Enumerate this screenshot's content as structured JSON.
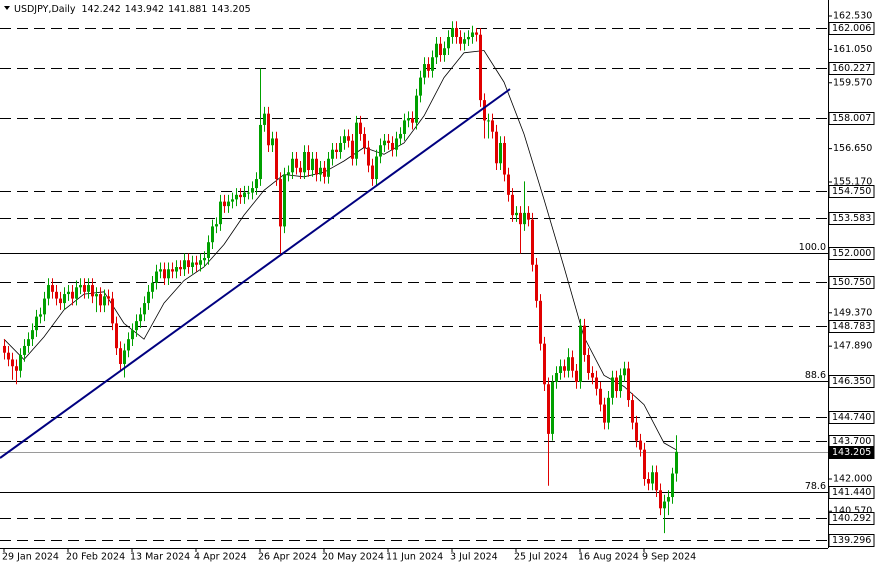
{
  "chart_data": {
    "type": "candlestick",
    "symbol": "USDJPY,Daily",
    "up_color": "#00a000",
    "down_color": "#e00000",
    "ylim": [
      138.94,
      163.24
    ],
    "yticks": [
      {
        "value": 162.53,
        "label": "162.530"
      },
      {
        "value": 161.05,
        "label": "161.050"
      },
      {
        "value": 159.57,
        "label": "159.570"
      },
      {
        "value": 156.65,
        "label": "156.650"
      },
      {
        "value": 155.17,
        "label": "155.170"
      },
      {
        "value": 149.37,
        "label": "149.370"
      },
      {
        "value": 147.89,
        "label": "147.890"
      },
      {
        "value": 142,
        "label": "142.000"
      },
      {
        "value": 140.57,
        "label": "140.570"
      }
    ],
    "levels": [
      {
        "price": 162.006,
        "style": "dashed"
      },
      {
        "price": 160.227,
        "style": "dashed"
      },
      {
        "price": 158.007,
        "style": "dashed"
      },
      {
        "price": {
          "value": 154.75,
          "label": "154.750"
        },
        "style": "dashed"
      },
      {
        "price": 153.583,
        "style": "dashed"
      },
      {
        "price": {
          "value": 152,
          "label": "152.000"
        },
        "style": "solid",
        "fib": "100.0"
      },
      {
        "price": {
          "value": 150.75,
          "label": "150.750"
        },
        "style": "dashed"
      },
      {
        "price": 148.783,
        "style": "dashed"
      },
      {
        "price": {
          "value": 146.35,
          "label": "146.350"
        },
        "style": "solid",
        "fib": "88.6"
      },
      {
        "price": {
          "value": 144.74,
          "label": "144.740"
        },
        "style": "dashed"
      },
      {
        "price": {
          "value": 143.7,
          "label": "143.700"
        },
        "style": "dashed"
      },
      {
        "price": 143.205,
        "style": "current"
      },
      {
        "price": {
          "value": 141.44,
          "label": "141.440"
        },
        "style": "solid",
        "fib": "78.6"
      },
      {
        "price": 140.292,
        "style": "dashed"
      },
      {
        "price": 139.296,
        "style": "dashed"
      }
    ],
    "trendline": {
      "x": [
        -1,
        126.5
      ],
      "values": [
        142.93,
        159.29
      ]
    },
    "ma": {
      "x": [
        0,
        5,
        10,
        15,
        20,
        25,
        30,
        35,
        40,
        45,
        50,
        55,
        60,
        65,
        70,
        75,
        80,
        85,
        90,
        95,
        100,
        105,
        110,
        115,
        120,
        125,
        130,
        135,
        140,
        145,
        150,
        155,
        160,
        165,
        168
      ],
      "values": [
        148.2,
        147.3,
        148.3,
        149.5,
        150.2,
        150.3,
        148.9,
        148.2,
        149.8,
        150.8,
        151.4,
        152.4,
        153.7,
        154.8,
        155.5,
        155.4,
        155.6,
        156.1,
        156.7,
        156.4,
        156.9,
        158.1,
        159.8,
        160.9,
        161.0,
        159.6,
        157.3,
        154.4,
        151.4,
        148.3,
        146.6,
        146.1,
        145.3,
        143.6,
        143.3
      ]
    },
    "categories": [
      "29 Jan 2024",
      null,
      null,
      null,
      null,
      null,
      null,
      null,
      null,
      null,
      null,
      null,
      null,
      null,
      null,
      null,
      "20 Feb 2024",
      null,
      null,
      null,
      null,
      null,
      null,
      null,
      null,
      null,
      null,
      null,
      null,
      null,
      null,
      null,
      "13 Mar 2024",
      null,
      null,
      null,
      null,
      null,
      null,
      null,
      null,
      null,
      null,
      null,
      null,
      null,
      null,
      null,
      "4 Apr 2024",
      null,
      null,
      null,
      null,
      null,
      null,
      null,
      null,
      null,
      null,
      null,
      null,
      null,
      null,
      null,
      "26 Apr 2024",
      null,
      null,
      null,
      null,
      null,
      null,
      null,
      null,
      null,
      null,
      null,
      null,
      null,
      null,
      null,
      "20 May 2024",
      null,
      null,
      null,
      null,
      null,
      null,
      null,
      null,
      null,
      null,
      null,
      null,
      null,
      null,
      null,
      "11 Jun 2024",
      null,
      null,
      null,
      null,
      null,
      null,
      null,
      null,
      null,
      null,
      null,
      null,
      null,
      null,
      null,
      "3 Jul 2024",
      null,
      null,
      null,
      null,
      null,
      null,
      null,
      null,
      null,
      null,
      null,
      null,
      null,
      null,
      null,
      "25 Jul 2024",
      null,
      null,
      null,
      null,
      null,
      null,
      null,
      null,
      null,
      null,
      null,
      null,
      null,
      null,
      null,
      "16 Aug 2024",
      null,
      null,
      null,
      null,
      null,
      null,
      null,
      null,
      null,
      null,
      null,
      null,
      null,
      null,
      null,
      "9 Sep 2024",
      null,
      null,
      null,
      null,
      null,
      null,
      null,
      null
    ],
    "ohlc": [
      [
        147.9,
        148.2,
        147.3,
        147.6
      ],
      [
        147.6,
        147.9,
        147.0,
        147.3
      ],
      [
        147.3,
        147.6,
        146.4,
        147.0
      ],
      [
        147.0,
        147.3,
        146.2,
        146.8
      ],
      [
        146.8,
        147.8,
        146.5,
        147.5
      ],
      [
        147.5,
        148.2,
        147.2,
        147.9
      ],
      [
        147.9,
        148.5,
        147.6,
        148.2
      ],
      [
        148.2,
        148.9,
        147.9,
        148.6
      ],
      [
        148.6,
        149.5,
        148.3,
        149.2
      ],
      [
        149.2,
        149.6,
        148.9,
        149.3
      ],
      [
        149.3,
        150.3,
        149.0,
        150.0
      ],
      [
        150.0,
        150.9,
        149.7,
        150.6
      ],
      [
        150.6,
        150.9,
        150.0,
        150.3
      ],
      [
        150.3,
        150.6,
        149.7,
        150.0
      ],
      [
        150.0,
        150.3,
        149.5,
        149.8
      ],
      [
        149.8,
        150.5,
        149.5,
        150.2
      ],
      [
        150.2,
        150.6,
        149.9,
        150.3
      ],
      [
        150.3,
        150.6,
        149.7,
        150.0
      ],
      [
        150.0,
        150.8,
        149.7,
        150.5
      ],
      [
        150.5,
        150.9,
        150.2,
        150.6
      ],
      [
        150.6,
        150.9,
        150.0,
        150.3
      ],
      [
        150.3,
        150.9,
        150.0,
        150.6
      ],
      [
        150.6,
        150.9,
        149.8,
        150.1
      ],
      [
        150.1,
        150.5,
        149.4,
        150.2
      ],
      [
        150.2,
        150.5,
        149.4,
        149.7
      ],
      [
        149.7,
        150.4,
        149.4,
        150.1
      ],
      [
        150.1,
        150.4,
        149.7,
        150.0
      ],
      [
        150.0,
        150.3,
        148.6,
        148.9
      ],
      [
        148.9,
        149.2,
        147.5,
        147.8
      ],
      [
        147.8,
        148.1,
        146.8,
        147.1
      ],
      [
        147.1,
        148.0,
        146.5,
        147.7
      ],
      [
        147.7,
        148.5,
        147.4,
        148.2
      ],
      [
        148.2,
        148.9,
        147.9,
        148.6
      ],
      [
        148.6,
        149.3,
        148.3,
        149.0
      ],
      [
        149.0,
        149.6,
        148.7,
        149.3
      ],
      [
        149.3,
        150.1,
        149.0,
        149.8
      ],
      [
        149.8,
        150.6,
        149.5,
        150.3
      ],
      [
        150.3,
        151.0,
        150.0,
        150.7
      ],
      [
        150.7,
        151.5,
        150.4,
        151.2
      ],
      [
        151.2,
        151.6,
        150.9,
        151.3
      ],
      [
        151.3,
        151.6,
        150.6,
        150.9
      ],
      [
        150.9,
        151.6,
        150.6,
        151.3
      ],
      [
        151.3,
        151.6,
        150.9,
        151.2
      ],
      [
        151.2,
        151.7,
        150.9,
        151.4
      ],
      [
        151.4,
        151.7,
        151.0,
        151.3
      ],
      [
        151.3,
        152.0,
        151.0,
        151.7
      ],
      [
        151.7,
        152.0,
        151.1,
        151.4
      ],
      [
        151.4,
        151.9,
        151.1,
        151.6
      ],
      [
        151.6,
        151.9,
        151.2,
        151.5
      ],
      [
        151.5,
        152.0,
        151.2,
        151.7
      ],
      [
        151.7,
        152.1,
        151.4,
        151.8
      ],
      [
        151.8,
        152.8,
        151.5,
        152.5
      ],
      [
        152.5,
        153.5,
        152.2,
        153.2
      ],
      [
        153.2,
        153.6,
        152.9,
        153.3
      ],
      [
        153.3,
        154.6,
        153.0,
        154.3
      ],
      [
        154.3,
        154.6,
        153.8,
        154.1
      ],
      [
        154.1,
        154.6,
        153.8,
        154.3
      ],
      [
        154.3,
        154.7,
        154.0,
        154.4
      ],
      [
        154.4,
        154.9,
        154.1,
        154.6
      ],
      [
        154.6,
        154.9,
        154.2,
        154.5
      ],
      [
        154.5,
        155.0,
        154.2,
        154.7
      ],
      [
        154.7,
        155.0,
        154.4,
        154.7
      ],
      [
        154.7,
        155.2,
        154.4,
        154.9
      ],
      [
        154.9,
        155.6,
        154.6,
        155.3
      ],
      [
        155.3,
        160.2,
        155.0,
        157.7
      ],
      [
        157.7,
        158.5,
        157.4,
        158.2
      ],
      [
        158.2,
        158.5,
        156.5,
        156.8
      ],
      [
        156.8,
        157.4,
        156.5,
        157.1
      ],
      [
        157.1,
        157.4,
        155.0,
        155.3
      ],
      [
        155.3,
        155.6,
        152.0,
        153.2
      ],
      [
        153.2,
        155.8,
        152.9,
        155.5
      ],
      [
        155.5,
        155.9,
        155.2,
        155.6
      ],
      [
        155.6,
        156.5,
        155.3,
        156.2
      ],
      [
        156.2,
        156.5,
        155.5,
        155.8
      ],
      [
        155.8,
        156.1,
        155.3,
        155.6
      ],
      [
        155.6,
        156.8,
        155.3,
        156.5
      ],
      [
        156.5,
        156.8,
        155.4,
        155.7
      ],
      [
        155.7,
        156.5,
        155.4,
        156.2
      ],
      [
        156.2,
        156.5,
        155.2,
        155.5
      ],
      [
        155.5,
        156.1,
        155.2,
        155.8
      ],
      [
        155.8,
        156.1,
        155.1,
        155.4
      ],
      [
        155.4,
        156.5,
        155.1,
        156.2
      ],
      [
        156.2,
        156.9,
        155.9,
        156.6
      ],
      [
        156.6,
        156.9,
        156.2,
        156.5
      ],
      [
        156.5,
        157.2,
        156.2,
        156.9
      ],
      [
        156.9,
        157.5,
        156.6,
        157.2
      ],
      [
        157.2,
        157.5,
        156.7,
        157.0
      ],
      [
        157.0,
        157.3,
        155.9,
        156.2
      ],
      [
        156.2,
        158.1,
        155.9,
        157.8
      ],
      [
        157.8,
        158.1,
        157.0,
        157.3
      ],
      [
        157.3,
        157.6,
        156.4,
        156.7
      ],
      [
        156.7,
        157.0,
        155.6,
        155.9
      ],
      [
        155.9,
        156.2,
        155.0,
        155.3
      ],
      [
        155.3,
        156.6,
        155.0,
        156.3
      ],
      [
        156.3,
        157.1,
        156.0,
        156.8
      ],
      [
        156.8,
        157.3,
        156.5,
        157.0
      ],
      [
        157.0,
        157.3,
        156.6,
        156.9
      ],
      [
        156.9,
        157.2,
        156.3,
        156.6
      ],
      [
        156.6,
        157.4,
        156.3,
        157.1
      ],
      [
        157.1,
        157.6,
        156.8,
        157.3
      ],
      [
        157.3,
        158.2,
        157.0,
        157.9
      ],
      [
        157.9,
        158.3,
        157.6,
        158.0
      ],
      [
        158.0,
        158.3,
        157.5,
        157.8
      ],
      [
        157.8,
        159.3,
        157.5,
        159.0
      ],
      [
        159.0,
        160.1,
        158.7,
        159.8
      ],
      [
        159.8,
        160.7,
        159.5,
        160.4
      ],
      [
        160.4,
        160.7,
        159.8,
        160.1
      ],
      [
        160.1,
        161.0,
        159.8,
        160.7
      ],
      [
        160.7,
        161.6,
        160.4,
        161.3
      ],
      [
        161.3,
        161.6,
        160.5,
        160.8
      ],
      [
        160.8,
        161.4,
        160.5,
        161.1
      ],
      [
        161.1,
        161.9,
        160.8,
        161.6
      ],
      [
        161.6,
        162.3,
        161.3,
        162.0
      ],
      [
        162.0,
        162.3,
        161.3,
        161.6
      ],
      [
        161.6,
        161.9,
        161.0,
        161.3
      ],
      [
        161.3,
        161.8,
        161.0,
        161.5
      ],
      [
        161.5,
        161.9,
        161.2,
        161.6
      ],
      [
        161.6,
        162.1,
        161.3,
        161.8
      ],
      [
        161.8,
        162.0,
        161.4,
        161.7
      ],
      [
        161.7,
        162.0,
        158.5,
        158.8
      ],
      [
        158.8,
        159.1,
        157.1,
        157.9
      ],
      [
        157.9,
        158.2,
        157.1,
        157.9
      ],
      [
        157.9,
        158.2,
        157.1,
        157.4
      ],
      [
        157.4,
        157.7,
        155.7,
        156.0
      ],
      [
        156.0,
        157.2,
        155.7,
        156.9
      ],
      [
        156.9,
        157.2,
        155.2,
        155.5
      ],
      [
        155.5,
        155.8,
        154.3,
        154.6
      ],
      [
        154.6,
        154.9,
        153.4,
        153.7
      ],
      [
        153.7,
        154.1,
        153.4,
        153.8
      ],
      [
        153.8,
        154.1,
        152.0,
        153.3
      ],
      [
        153.3,
        155.2,
        153.0,
        153.8
      ],
      [
        153.8,
        154.1,
        153.2,
        153.5
      ],
      [
        153.5,
        153.8,
        151.2,
        151.5
      ],
      [
        151.5,
        151.8,
        149.6,
        149.9
      ],
      [
        149.9,
        150.2,
        147.7,
        148.0
      ],
      [
        148.0,
        148.3,
        145.9,
        146.2
      ],
      [
        146.2,
        146.5,
        141.7,
        144.0
      ],
      [
        144.0,
        146.6,
        143.7,
        146.3
      ],
      [
        146.3,
        147.0,
        146.0,
        146.7
      ],
      [
        146.7,
        147.3,
        146.4,
        147.0
      ],
      [
        147.0,
        147.3,
        146.5,
        146.8
      ],
      [
        146.8,
        147.8,
        146.5,
        147.4
      ],
      [
        147.4,
        147.7,
        146.5,
        146.8
      ],
      [
        146.8,
        147.1,
        146.0,
        146.3
      ],
      [
        146.3,
        149.1,
        146.0,
        148.8
      ],
      [
        148.8,
        149.1,
        147.2,
        147.5
      ],
      [
        147.5,
        147.8,
        146.4,
        146.7
      ],
      [
        146.7,
        147.0,
        146.2,
        146.5
      ],
      [
        146.5,
        146.8,
        145.7,
        146.0
      ],
      [
        146.0,
        146.3,
        145.0,
        145.3
      ],
      [
        145.3,
        145.6,
        144.2,
        144.5
      ],
      [
        144.5,
        145.9,
        144.2,
        145.6
      ],
      [
        145.6,
        146.8,
        145.3,
        146.5
      ],
      [
        146.5,
        146.8,
        145.6,
        145.9
      ],
      [
        145.9,
        146.9,
        145.6,
        146.6
      ],
      [
        146.6,
        147.2,
        146.3,
        146.9
      ],
      [
        146.9,
        147.2,
        145.2,
        145.5
      ],
      [
        145.5,
        145.8,
        144.2,
        144.5
      ],
      [
        144.5,
        144.8,
        143.4,
        143.7
      ],
      [
        143.7,
        144.0,
        143.0,
        143.3
      ],
      [
        143.3,
        143.6,
        141.7,
        142.0
      ],
      [
        142.0,
        142.3,
        141.5,
        141.8
      ],
      [
        141.8,
        142.6,
        141.5,
        142.3
      ],
      [
        142.3,
        142.6,
        141.2,
        141.5
      ],
      [
        141.5,
        141.8,
        140.4,
        140.7
      ],
      [
        140.7,
        141.3,
        139.6,
        141.0
      ],
      [
        141.0,
        141.5,
        140.4,
        141.2
      ],
      [
        141.2,
        142.5,
        140.9,
        142.242
      ],
      [
        142.242,
        143.942,
        141.881,
        143.205
      ]
    ]
  }
}
